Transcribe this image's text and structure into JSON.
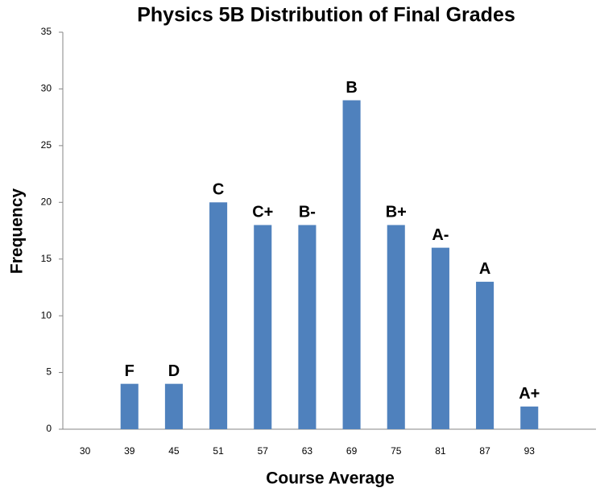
{
  "chart_data": {
    "type": "bar",
    "title": "Physics 5B Distribution of Final Grades",
    "x_label": "Course Average",
    "y_label": "Frequency",
    "categories": [
      "30",
      "39",
      "45",
      "51",
      "57",
      "63",
      "69",
      "75",
      "81",
      "87",
      "93",
      null
    ],
    "values": [
      0,
      4,
      4,
      20,
      18,
      18,
      29,
      18,
      16,
      13,
      2,
      null
    ],
    "annotations": [
      null,
      "F",
      "D",
      "C",
      "C+",
      "B-",
      "B",
      "B+",
      "A-",
      "A",
      "A+",
      null
    ],
    "color": "#4f81bd",
    "ylim": [
      0,
      35
    ],
    "yticks": [
      0,
      5,
      10,
      15,
      20,
      25,
      30,
      35
    ],
    "grid": false
  }
}
